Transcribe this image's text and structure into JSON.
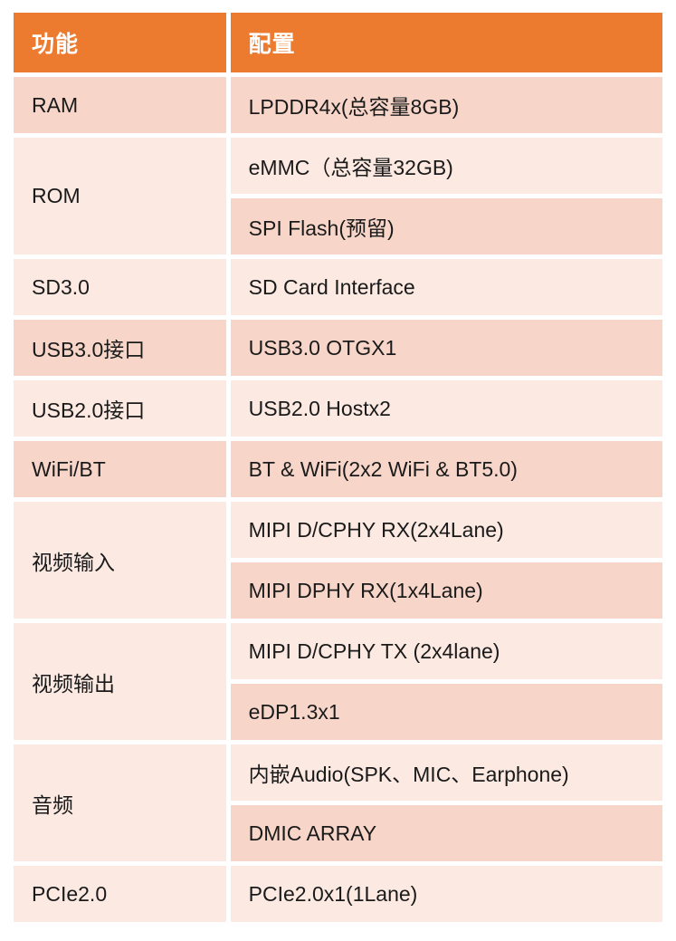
{
  "table": {
    "header": {
      "function": "功能",
      "config": "配置"
    },
    "rows": [
      {
        "function": "RAM",
        "configs": [
          "LPDDR4x(总容量8GB)"
        ]
      },
      {
        "function": "ROM",
        "configs": [
          "eMMC（总容量32GB)",
          "SPI Flash(预留)"
        ]
      },
      {
        "function": "SD3.0",
        "configs": [
          "SD Card Interface"
        ]
      },
      {
        "function": "USB3.0接口",
        "configs": [
          "USB3.0 OTGX1"
        ]
      },
      {
        "function": "USB2.0接口",
        "configs": [
          "USB2.0 Hostx2"
        ]
      },
      {
        "function": "WiFi/BT",
        "configs": [
          "BT & WiFi(2x2 WiFi & BT5.0)"
        ]
      },
      {
        "function": "视频输入",
        "configs": [
          "MIPI D/CPHY RX(2x4Lane)",
          "MIPI DPHY RX(1x4Lane)"
        ]
      },
      {
        "function": "视频输出",
        "configs": [
          "MIPI D/CPHY TX (2x4lane)",
          "eDP1.3x1"
        ]
      },
      {
        "function": "音频",
        "configs": [
          "内嵌Audio(SPK、MIC、Earphone)",
          "DMIC ARRAY"
        ]
      },
      {
        "function": "PCIe2.0",
        "configs": [
          "PCIe2.0x1(1Lane)"
        ]
      }
    ],
    "colors": {
      "header_bg": "#EC7B2F",
      "band_dark": "#F7D6C9",
      "band_light": "#FBE9E2",
      "header_text": "#FFFFFF",
      "body_text": "#1A1A1A",
      "page_bg": "#FFFFFF"
    }
  }
}
